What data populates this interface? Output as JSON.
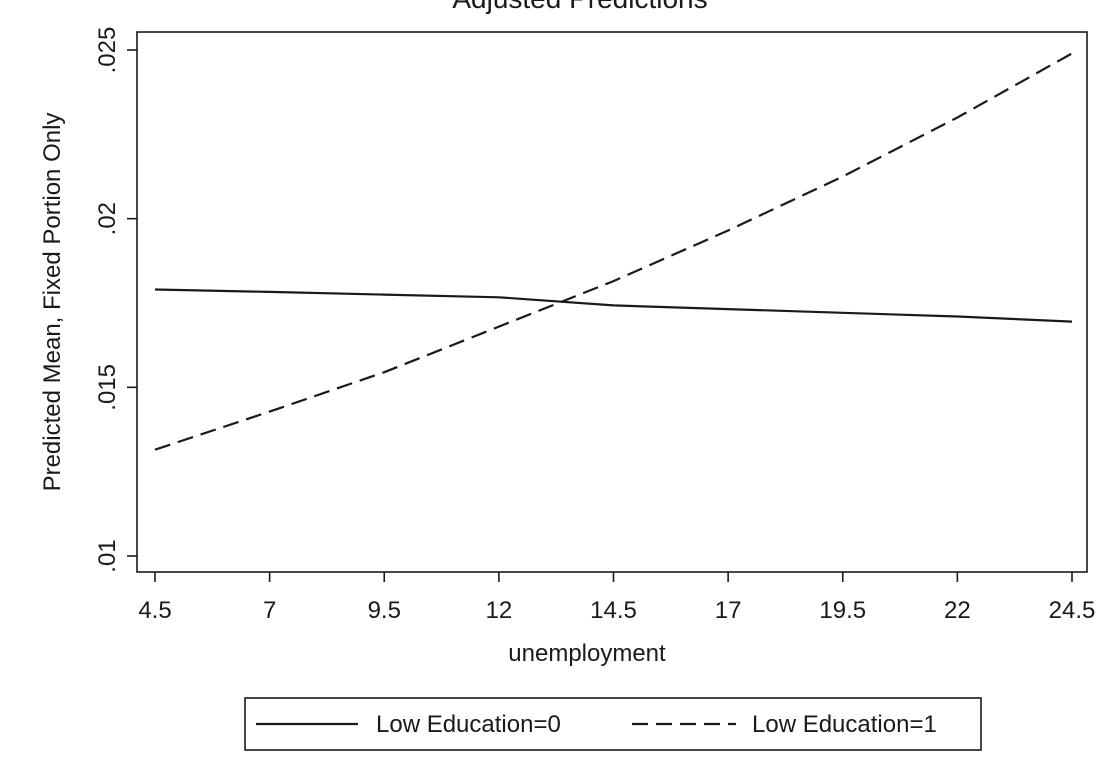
{
  "chart_data": {
    "type": "line",
    "title": "Adjusted Predictions",
    "xlabel": "unemployment",
    "ylabel": "Predicted Mean, Fixed Portion Only",
    "x": [
      4.5,
      7,
      9.5,
      12,
      14.5,
      17,
      19.5,
      22,
      24.5
    ],
    "x_tick_labels": [
      "4.5",
      "7",
      "9.5",
      "12",
      "14.5",
      "17",
      "19.5",
      "22",
      "24.5"
    ],
    "y_ticks": [
      0.01,
      0.015,
      0.02,
      0.025
    ],
    "y_tick_labels": [
      ".01",
      ".015",
      ".02",
      ".025"
    ],
    "xlim": [
      4.5,
      24.5
    ],
    "ylim": [
      0.01,
      0.025
    ],
    "grid": false,
    "legend_position": "bottom",
    "series": [
      {
        "name": "Low Education=0",
        "line_style": "solid",
        "color": "#1a1a1a",
        "values": [
          0.0179,
          0.01783,
          0.01775,
          0.01767,
          0.01743,
          0.01732,
          0.01721,
          0.0171,
          0.01695
        ]
      },
      {
        "name": "Low Education=1",
        "line_style": "dashed",
        "color": "#1a1a1a",
        "values": [
          0.01315,
          0.01428,
          0.01545,
          0.0168,
          0.01815,
          0.01965,
          0.02125,
          0.023,
          0.0249
        ]
      }
    ]
  }
}
